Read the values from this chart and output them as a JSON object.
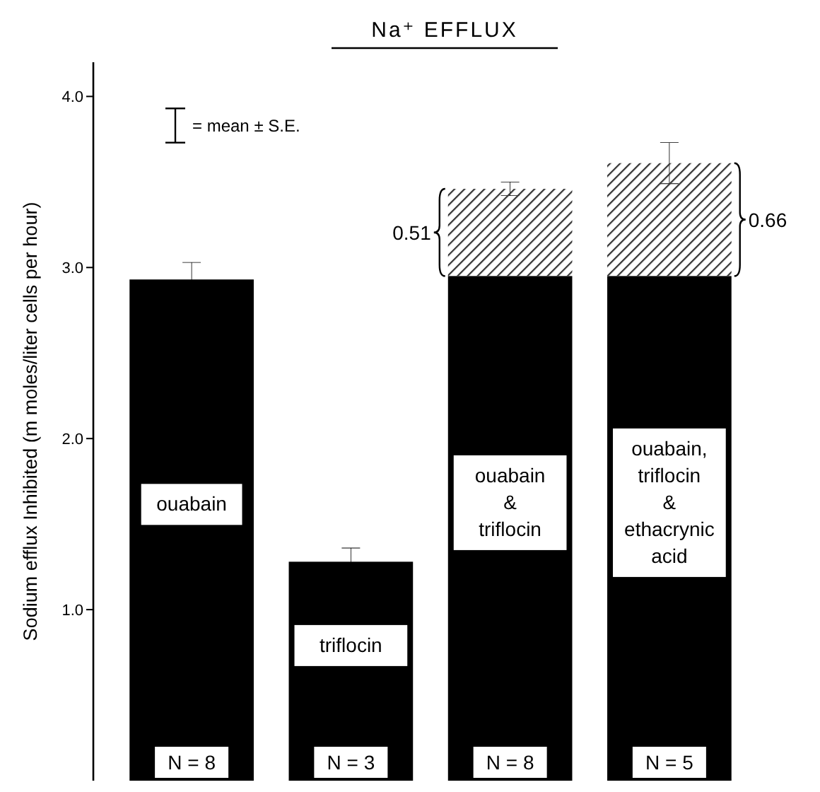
{
  "chart_data": {
    "type": "bar",
    "title": "Na⁺ EFFLUX",
    "ylabel": "Sodium efflux  Inhibited  (m moles/liter cells per hour)",
    "categories": [
      "ouabain",
      "triflocin",
      "ouabain\n&\ntriflocin",
      "ouabain,\ntriflocin\n&\nethacrynic\nacid"
    ],
    "stacked": true,
    "series": [
      {
        "color": "#000000",
        "values": [
          2.93,
          1.28,
          2.95,
          2.95
        ],
        "errors": [
          0.1,
          0.08,
          null,
          null
        ]
      },
      {
        "color": "#333333",
        "values": [
          null,
          null,
          0.51,
          0.66
        ],
        "errors": [
          null,
          null,
          0.04,
          0.12
        ]
      }
    ],
    "ylim": [
      0,
      4.2
    ],
    "yticks": [
      {
        "value": 1,
        "label": "1.0"
      },
      {
        "value": 2,
        "label": "2.0"
      },
      {
        "value": 3,
        "label": "3.0"
      },
      {
        "value": 4,
        "label": "4.0"
      }
    ],
    "tick_labels": "y",
    "annotations": [
      "= mean ± S.E.",
      "N = 8",
      "N = 3",
      "N = 8",
      "N = 5",
      "0.51",
      "0.66"
    ]
  }
}
